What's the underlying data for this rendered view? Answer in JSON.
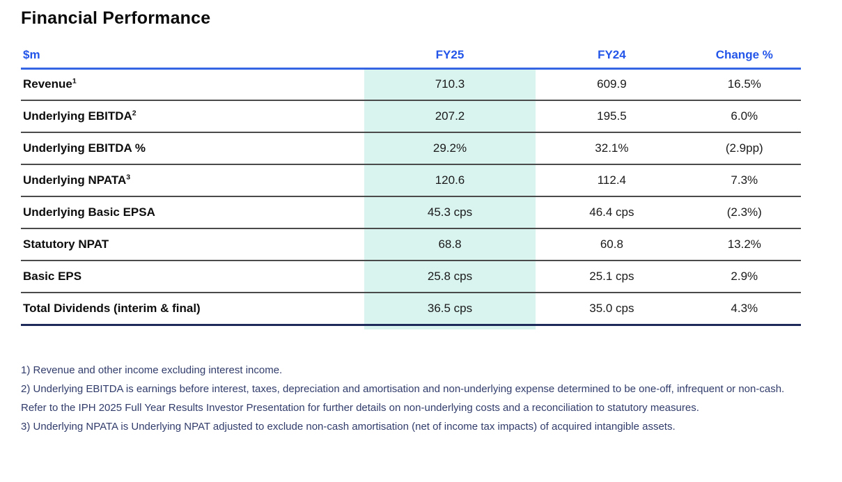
{
  "page": {
    "title": "Financial Performance"
  },
  "table": {
    "unit_header": "$m",
    "columns": [
      "FY25",
      "FY24",
      "Change %"
    ],
    "header_text_color": "#2355e9",
    "header_rule_color": "#3565e3",
    "highlight_color": "#d9f3ef",
    "bottom_rule_color": "#1e2a59",
    "rows": [
      {
        "label": "Revenue",
        "sup": "1",
        "fy25": "710.3",
        "fy24": "609.9",
        "change": "16.5%"
      },
      {
        "label": "Underlying EBITDA",
        "sup": "2",
        "fy25": "207.2",
        "fy24": "195.5",
        "change": "6.0%"
      },
      {
        "label": "Underlying EBITDA %",
        "sup": "",
        "fy25": "29.2%",
        "fy24": "32.1%",
        "change": "(2.9pp)"
      },
      {
        "label": "Underlying NPATA",
        "sup": "3",
        "fy25": "120.6",
        "fy24": "112.4",
        "change": "7.3%"
      },
      {
        "label": "Underlying Basic EPSA",
        "sup": "",
        "fy25": "45.3 cps",
        "fy24": "46.4 cps",
        "change": "(2.3%)"
      },
      {
        "label": "Statutory NPAT",
        "sup": "",
        "fy25": "68.8",
        "fy24": "60.8",
        "change": "13.2%"
      },
      {
        "label": "Basic EPS",
        "sup": "",
        "fy25": "25.8 cps",
        "fy24": "25.1 cps",
        "change": "2.9%"
      },
      {
        "label": "Total Dividends (interim & final)",
        "sup": "",
        "fy25": "36.5 cps",
        "fy24": "35.0 cps",
        "change": "4.3%"
      }
    ]
  },
  "footnotes": [
    "1) Revenue and other income excluding interest income.",
    "2) Underlying EBITDA is earnings before interest, taxes, depreciation and amortisation and non-underlying expense determined to be one-off, infrequent or non-cash. Refer to the IPH 2025 Full Year Results Investor Presentation for further details on non-underlying costs and a reconciliation to statutory measures.",
    "3) Underlying NPATA is Underlying NPAT adjusted to exclude non-cash amortisation (net of income tax impacts) of acquired intangible assets."
  ],
  "chart_data": {
    "type": "table",
    "title": "Financial Performance",
    "unit": "$m",
    "columns": [
      "$m",
      "FY25",
      "FY24",
      "Change %"
    ],
    "rows": [
      [
        "Revenue",
        "710.3",
        "609.9",
        "16.5%"
      ],
      [
        "Underlying EBITDA",
        "207.2",
        "195.5",
        "6.0%"
      ],
      [
        "Underlying EBITDA %",
        "29.2%",
        "32.1%",
        "(2.9pp)"
      ],
      [
        "Underlying NPATA",
        "120.6",
        "112.4",
        "7.3%"
      ],
      [
        "Underlying Basic EPSA",
        "45.3 cps",
        "46.4 cps",
        "(2.3%)"
      ],
      [
        "Statutory NPAT",
        "68.8",
        "60.8",
        "13.2%"
      ],
      [
        "Basic EPS",
        "25.8 cps",
        "25.1 cps",
        "2.9%"
      ],
      [
        "Total Dividends (interim & final)",
        "36.5 cps",
        "35.0 cps",
        "4.3%"
      ]
    ],
    "layout": {
      "highlighted_column": "FY25",
      "grid": "horizontal-rules-only"
    }
  }
}
